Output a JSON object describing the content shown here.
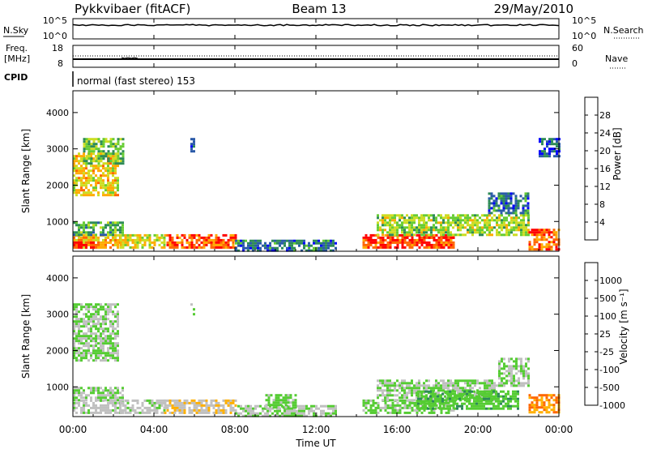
{
  "header": {
    "station": "Pykkvibaer (fitACF)",
    "beam": "Beam 13",
    "date": "29/May/2010"
  },
  "nsky_panel": {
    "left_label": "N.Sky",
    "left_ticks": [
      "10^5",
      "10^0"
    ],
    "right_ticks": [
      "10^5",
      "10^0"
    ],
    "right_label": "N.Search"
  },
  "freq_panel": {
    "left_label_1": "Freq.",
    "left_label_2": "[MHz]",
    "left_ticks": [
      "18",
      "8"
    ],
    "right_ticks": [
      "60",
      "0"
    ],
    "right_label": "Nave"
  },
  "cpid": {
    "label": "CPID",
    "value": "normal (fast stereo) 153"
  },
  "x_axis": {
    "label": "Time UT",
    "ticks": [
      "00:00",
      "04:00",
      "08:00",
      "12:00",
      "16:00",
      "20:00",
      "00:00"
    ],
    "range_hours": [
      0,
      24
    ]
  },
  "power_panel": {
    "ylabel": "Slant Range [km]",
    "yticks": [
      "4000",
      "3000",
      "2000",
      "1000"
    ],
    "colorbar_label": "Power [dB]",
    "colorbar_ticks": [
      "28",
      "24",
      "20",
      "16",
      "12",
      "8",
      "4"
    ],
    "colors": [
      "#0000ff",
      "#2a5aa8",
      "#2e8b57",
      "#66cc33",
      "#ccdd22",
      "#ffaa00",
      "#ff6600",
      "#ff0000"
    ]
  },
  "velocity_panel": {
    "ylabel": "Slant Range [km]",
    "yticks": [
      "4000",
      "3000",
      "2000",
      "1000"
    ],
    "colorbar_label": "Velocity [m s⁻¹]",
    "colorbar_ticks": [
      "1000",
      "500",
      "100",
      "25",
      "-25",
      "-100",
      "-500",
      "-1000"
    ],
    "colors": [
      "#1a2fd0",
      "#2a6a8a",
      "#2e8b57",
      "#55cc33",
      "#c0c0c0",
      "#ffb000",
      "#ff6600",
      "#ff0000"
    ]
  },
  "chart_data": [
    {
      "type": "heatmap",
      "title": "Power",
      "xlabel": "Time UT",
      "ylabel": "Slant Range [km]",
      "xlim": [
        0,
        24
      ],
      "ylim": [
        180,
        4600
      ],
      "colorbar": "Power [dB]",
      "zlim": [
        0,
        32
      ],
      "regions": [
        {
          "x": [
            0.0,
            2.3
          ],
          "y": [
            250,
            650
          ],
          "value": 22
        },
        {
          "x": [
            0.0,
            1.0
          ],
          "y": [
            250,
            450
          ],
          "value": 30
        },
        {
          "x": [
            0.0,
            2.5
          ],
          "y": [
            650,
            1000
          ],
          "value": 12
        },
        {
          "x": [
            0.0,
            2.2
          ],
          "y": [
            1700,
            2900
          ],
          "value": 20
        },
        {
          "x": [
            0.5,
            2.5
          ],
          "y": [
            2600,
            3300
          ],
          "value": 14
        },
        {
          "x": [
            2.3,
            4.5
          ],
          "y": [
            250,
            650
          ],
          "value": 18
        },
        {
          "x": [
            4.5,
            8.0
          ],
          "y": [
            250,
            650
          ],
          "value": 26
        },
        {
          "x": [
            5.8,
            6.0
          ],
          "y": [
            2800,
            3300
          ],
          "value": 6
        },
        {
          "x": [
            8.0,
            13.0
          ],
          "y": [
            180,
            500
          ],
          "value": 8
        },
        {
          "x": [
            14.3,
            18.8
          ],
          "y": [
            250,
            650
          ],
          "value": 28
        },
        {
          "x": [
            15.0,
            22.5
          ],
          "y": [
            650,
            1200
          ],
          "value": 16
        },
        {
          "x": [
            20.5,
            22.5
          ],
          "y": [
            1200,
            1800
          ],
          "value": 8
        },
        {
          "x": [
            22.5,
            24.0
          ],
          "y": [
            250,
            800
          ],
          "value": 26
        },
        {
          "x": [
            23.0,
            24.0
          ],
          "y": [
            2800,
            3300
          ],
          "value": 6
        }
      ]
    },
    {
      "type": "heatmap",
      "title": "Velocity",
      "xlabel": "Time UT",
      "ylabel": "Slant Range [km]",
      "xlim": [
        0,
        24
      ],
      "ylim": [
        180,
        4600
      ],
      "colorbar": "Velocity [m s⁻¹]",
      "zlim": [
        -1000,
        1000
      ],
      "regions": [
        {
          "x": [
            0.0,
            2.5
          ],
          "y": [
            250,
            650
          ],
          "value": -100
        },
        {
          "x": [
            0.0,
            2.2
          ],
          "y": [
            1700,
            3300
          ],
          "value": 0
        },
        {
          "x": [
            0.0,
            2.5
          ],
          "y": [
            650,
            1000
          ],
          "value": 0
        },
        {
          "x": [
            2.3,
            4.5
          ],
          "y": [
            250,
            650
          ],
          "value": -100
        },
        {
          "x": [
            4.5,
            8.0
          ],
          "y": [
            250,
            650
          ],
          "value": -200
        },
        {
          "x": [
            5.8,
            6.0
          ],
          "y": [
            2900,
            3300
          ],
          "value": 100
        },
        {
          "x": [
            8.0,
            13.0
          ],
          "y": [
            180,
            500
          ],
          "value": 0
        },
        {
          "x": [
            9.5,
            11.0
          ],
          "y": [
            400,
            800
          ],
          "value": 100
        },
        {
          "x": [
            14.3,
            18.8
          ],
          "y": [
            250,
            650
          ],
          "value": 100
        },
        {
          "x": [
            15.0,
            21.0
          ],
          "y": [
            650,
            1200
          ],
          "value": 0
        },
        {
          "x": [
            17.0,
            22.0
          ],
          "y": [
            400,
            900
          ],
          "value": 150
        },
        {
          "x": [
            21.0,
            22.5
          ],
          "y": [
            1000,
            1800
          ],
          "value": 0
        },
        {
          "x": [
            22.5,
            24.0
          ],
          "y": [
            300,
            800
          ],
          "value": -500
        }
      ]
    }
  ]
}
